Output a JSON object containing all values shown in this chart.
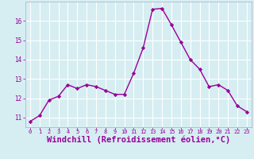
{
  "x": [
    0,
    1,
    2,
    3,
    4,
    5,
    6,
    7,
    8,
    9,
    10,
    11,
    12,
    13,
    14,
    15,
    16,
    17,
    18,
    19,
    20,
    21,
    22,
    23
  ],
  "y": [
    10.8,
    11.1,
    11.9,
    12.1,
    12.7,
    12.5,
    12.7,
    12.6,
    12.4,
    12.2,
    12.2,
    13.3,
    14.6,
    16.6,
    16.65,
    15.8,
    14.9,
    14.0,
    13.5,
    12.6,
    12.7,
    12.4,
    11.6,
    11.3
  ],
  "line_color": "#990099",
  "marker": "D",
  "marker_size": 2.2,
  "line_width": 1.0,
  "bg_color": "#d6eef2",
  "grid_color": "#ffffff",
  "xlabel": "Windchill (Refroidissement éolien,°C)",
  "xlabel_fontsize": 7.5,
  "tick_label_color": "#990099",
  "xlabel_color": "#990099",
  "ylim": [
    10.5,
    17.0
  ],
  "xlim": [
    -0.5,
    23.5
  ],
  "yticks": [
    11,
    12,
    13,
    14,
    15,
    16
  ],
  "xticks": [
    0,
    1,
    2,
    3,
    4,
    5,
    6,
    7,
    8,
    9,
    10,
    11,
    12,
    13,
    14,
    15,
    16,
    17,
    18,
    19,
    20,
    21,
    22,
    23
  ]
}
